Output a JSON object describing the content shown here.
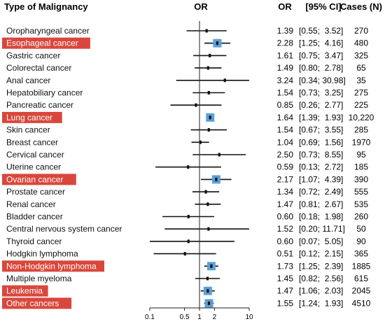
{
  "chart_data": {
    "type": "forest",
    "headers": {
      "label": "Type of Malignancy",
      "plot": "OR",
      "or": "OR",
      "ci": "[95% CI]",
      "cases": "Cases (N)"
    },
    "x_axis": {
      "scale": "log",
      "range": [
        0.1,
        10
      ],
      "ticks": [
        0.1,
        0.5,
        1,
        2,
        10
      ],
      "tick_labels": [
        "0.1",
        "0.5",
        "1",
        "2",
        "10"
      ],
      "reference_line": 1
    },
    "highlight_color": "#d9473c",
    "highlight_marker_color": "#5aa0d8",
    "rows": [
      {
        "label": "Oropharyngeal cancer",
        "or": 1.39,
        "lo": 0.55,
        "hi": 3.52,
        "or_text": "1.39",
        "ci_text": "[0.55;  3.52]",
        "cases": "270",
        "highlight": false
      },
      {
        "label": "Esophageal cancer",
        "or": 2.28,
        "lo": 1.25,
        "hi": 4.16,
        "or_text": "2.28",
        "ci_text": "[1.25;  4.16]",
        "cases": "480",
        "highlight": true
      },
      {
        "label": "Gastric cancer",
        "or": 1.61,
        "lo": 0.75,
        "hi": 3.47,
        "or_text": "1.61",
        "ci_text": "[0.75;  3.47]",
        "cases": "325",
        "highlight": false
      },
      {
        "label": "Colorectal cancer",
        "or": 1.49,
        "lo": 0.8,
        "hi": 2.78,
        "or_text": "1.49",
        "ci_text": "[0.80;  2.78]",
        "cases": "65",
        "highlight": false
      },
      {
        "label": "Anal cancer",
        "or": 3.24,
        "lo": 0.34,
        "hi": 30.98,
        "or_text": "3.24",
        "ci_text": "[0.34; 30.98]",
        "cases": "35",
        "highlight": false
      },
      {
        "label": "Hepatobiliary cancer",
        "or": 1.54,
        "lo": 0.73,
        "hi": 3.25,
        "or_text": "1.54",
        "ci_text": "[0.73;  3.25]",
        "cases": "275",
        "highlight": false
      },
      {
        "label": "Pancreatic cancer",
        "or": 0.85,
        "lo": 0.26,
        "hi": 2.77,
        "or_text": "0.85",
        "ci_text": "[0.26;  2.77]",
        "cases": "225",
        "highlight": false
      },
      {
        "label": "Lung cancer",
        "or": 1.64,
        "lo": 1.39,
        "hi": 1.93,
        "or_text": "1.64",
        "ci_text": "[1.39;  1.93]",
        "cases": "10,220",
        "highlight": true
      },
      {
        "label": "Skin cancer",
        "or": 1.54,
        "lo": 0.67,
        "hi": 3.55,
        "or_text": "1.54",
        "ci_text": "[0.67;  3.55]",
        "cases": "285",
        "highlight": false
      },
      {
        "label": "Breast cancer",
        "or": 1.04,
        "lo": 0.69,
        "hi": 1.56,
        "or_text": "1.04",
        "ci_text": "[0.69;  1.56]",
        "cases": "1970",
        "highlight": false
      },
      {
        "label": "Cervical cancer",
        "or": 2.5,
        "lo": 0.73,
        "hi": 8.55,
        "or_text": "2.50",
        "ci_text": "[0.73;  8.55]",
        "cases": "95",
        "highlight": false
      },
      {
        "label": "Uterine cancer",
        "or": 0.59,
        "lo": 0.13,
        "hi": 2.72,
        "or_text": "0.59",
        "ci_text": "[0.13;  2.72]",
        "cases": "185",
        "highlight": false
      },
      {
        "label": "Ovarian cancer",
        "or": 2.17,
        "lo": 1.07,
        "hi": 4.39,
        "or_text": "2.17",
        "ci_text": "[1.07;  4.39]",
        "cases": "390",
        "highlight": true
      },
      {
        "label": "Prostate cancer",
        "or": 1.34,
        "lo": 0.72,
        "hi": 2.49,
        "or_text": "1.34",
        "ci_text": "[0.72;  2.49]",
        "cases": "555",
        "highlight": false
      },
      {
        "label": "Renal cancer",
        "or": 1.47,
        "lo": 0.81,
        "hi": 2.67,
        "or_text": "1.47",
        "ci_text": "[0.81;  2.67]",
        "cases": "535",
        "highlight": false
      },
      {
        "label": "Bladder cancer",
        "or": 0.6,
        "lo": 0.18,
        "hi": 1.98,
        "or_text": "0.60",
        "ci_text": "[0.18;  1.98]",
        "cases": "260",
        "highlight": false
      },
      {
        "label": "Central nervous system cancer",
        "or": 1.52,
        "lo": 0.2,
        "hi": 11.71,
        "or_text": "1.52",
        "ci_text": "[0.20; 11.71]",
        "cases": "50",
        "highlight": false
      },
      {
        "label": "Thyroid cancer",
        "or": 0.6,
        "lo": 0.07,
        "hi": 5.05,
        "or_text": "0.60",
        "ci_text": "[0.07;  5.05]",
        "cases": "90",
        "highlight": false
      },
      {
        "label": "Hodgkin lymphoma",
        "or": 0.51,
        "lo": 0.12,
        "hi": 2.15,
        "or_text": "0.51",
        "ci_text": "[0.12;  2.15]",
        "cases": "365",
        "highlight": false
      },
      {
        "label": "Non-Hodgkin lymphoma",
        "or": 1.73,
        "lo": 1.25,
        "hi": 2.39,
        "or_text": "1.73",
        "ci_text": "[1.25;  2.39]",
        "cases": "1885",
        "highlight": true
      },
      {
        "label": "Multiple myeloma",
        "or": 1.45,
        "lo": 0.82,
        "hi": 2.56,
        "or_text": "1.45",
        "ci_text": "[0.82;  2.56]",
        "cases": "615",
        "highlight": false
      },
      {
        "label": "Leukemia",
        "or": 1.47,
        "lo": 1.06,
        "hi": 2.03,
        "or_text": "1.47",
        "ci_text": "[1.06;  2.03]",
        "cases": "2045",
        "highlight": true
      },
      {
        "label": "Other cancers",
        "or": 1.55,
        "lo": 1.24,
        "hi": 1.93,
        "or_text": "1.55",
        "ci_text": "[1.24;  1.93]",
        "cases": "4510",
        "highlight": true
      }
    ]
  }
}
